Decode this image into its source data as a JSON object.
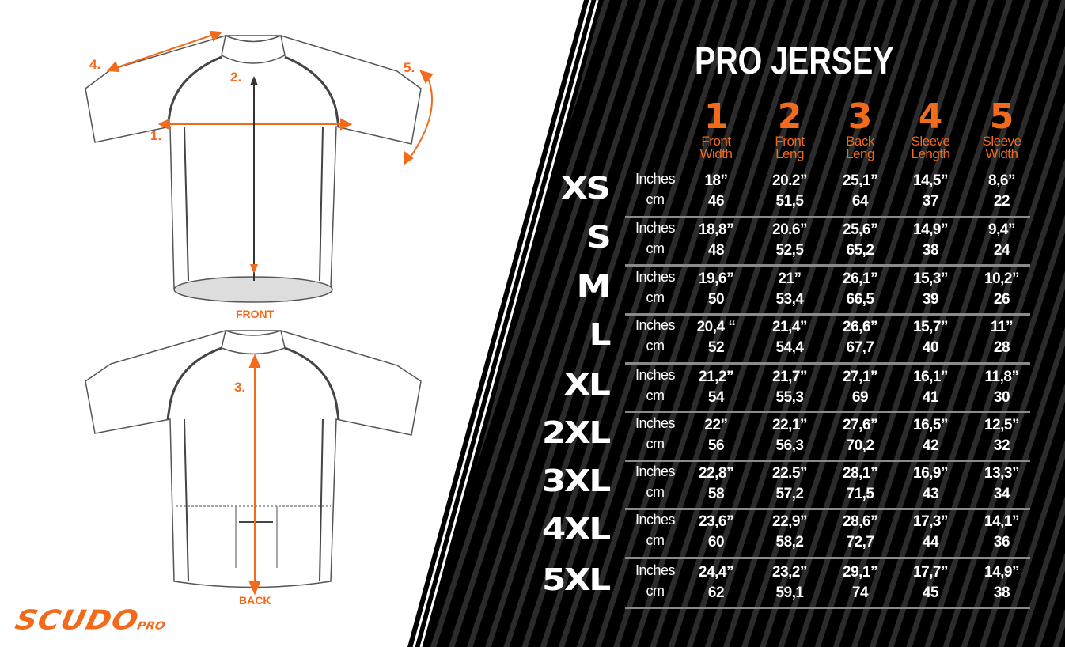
{
  "title": "PRO JERSEY",
  "brand": {
    "logo": "SCUDO",
    "logo_suffix": "PRO"
  },
  "diagram": {
    "front_label": "FRONT",
    "back_label": "BACK",
    "markers": [
      "1.",
      "2.",
      "3.",
      "4.",
      "5."
    ]
  },
  "colors": {
    "accent": "#f26a1b",
    "panel": "#000000",
    "stripe": "#2a2a2a",
    "text": "#ffffff"
  },
  "columns": [
    {
      "number": "1",
      "line1": "Front",
      "line2": "Width"
    },
    {
      "number": "2",
      "line1": "Front",
      "line2": "Leng"
    },
    {
      "number": "3",
      "line1": "Back",
      "line2": "Leng"
    },
    {
      "number": "4",
      "line1": "Sleeve",
      "line2": "Length"
    },
    {
      "number": "5",
      "line1": "Sleeve",
      "line2": "Width"
    }
  ],
  "units": {
    "inches": "Inches",
    "cm": "cm"
  },
  "rows": [
    {
      "size": "XS",
      "inches": [
        "18”",
        "20.2”",
        "25,1”",
        "14,5”",
        "8,6”"
      ],
      "cm": [
        "46",
        "51,5",
        "64",
        "37",
        "22"
      ]
    },
    {
      "size": "S",
      "inches": [
        "18,8”",
        "20.6”",
        "25,6”",
        "14,9”",
        "9,4”"
      ],
      "cm": [
        "48",
        "52,5",
        "65,2",
        "38",
        "24"
      ]
    },
    {
      "size": "M",
      "inches": [
        "19,6”",
        "21”",
        "26,1”",
        "15,3”",
        "10,2”"
      ],
      "cm": [
        "50",
        "53,4",
        "66,5",
        "39",
        "26"
      ]
    },
    {
      "size": "L",
      "inches": [
        "20,4 “",
        "21,4”",
        "26,6”",
        "15,7”",
        "11”"
      ],
      "cm": [
        "52",
        "54,4",
        "67,7",
        "40",
        "28"
      ]
    },
    {
      "size": "XL",
      "inches": [
        "21,2”",
        "21,7”",
        "27,1”",
        "16,1”",
        "11,8”"
      ],
      "cm": [
        "54",
        "55,3",
        "69",
        "41",
        "30"
      ]
    },
    {
      "size": "2XL",
      "inches": [
        "22”",
        "22,1”",
        "27,6”",
        "16,5”",
        "12,5”"
      ],
      "cm": [
        "56",
        "56,3",
        "70,2",
        "42",
        "32"
      ]
    },
    {
      "size": "3XL",
      "inches": [
        "22,8”",
        "22.5”",
        "28,1”",
        "16,9”",
        "13,3”"
      ],
      "cm": [
        "58",
        "57,2",
        "71,5",
        "43",
        "34"
      ]
    },
    {
      "size": "4XL",
      "inches": [
        "23,6”",
        "22,9”",
        "28,6”",
        "17,3”",
        "14,1”"
      ],
      "cm": [
        "60",
        "58,2",
        "72,7",
        "44",
        "36"
      ]
    },
    {
      "size": "5XL",
      "inches": [
        "24,4”",
        "23,2”",
        "29,1”",
        "17,7”",
        "14,9”"
      ],
      "cm": [
        "62",
        "59,1",
        "74",
        "45",
        "38"
      ]
    }
  ]
}
